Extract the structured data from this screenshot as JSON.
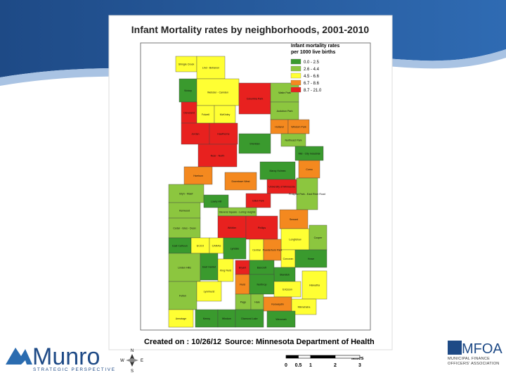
{
  "title": "Infant Mortality rates by neighborhoods, 2001-2010",
  "legend": {
    "title_lines": [
      "Infant mortality rates",
      "per 1000 live births"
    ],
    "items": [
      {
        "label": "0.0 - 2.5",
        "color": "#3a9a2e"
      },
      {
        "label": "2.6 - 4.4",
        "color": "#8cc63f"
      },
      {
        "label": "4.5 - 6.6",
        "color": "#ffff33"
      },
      {
        "label": "6.7 - 8.6",
        "color": "#f4891f"
      },
      {
        "label": "8.7 - 21.0",
        "color": "#e8211f"
      }
    ]
  },
  "neighborhoods": [
    {
      "label": "Shingle Creek",
      "category": "4.5 - 6.6"
    },
    {
      "label": "Lind - Bohanon",
      "category": "4.5 - 6.6"
    },
    {
      "label": "Victory",
      "category": "0.0 - 2.5"
    },
    {
      "label": "Webster - Camden",
      "category": "4.5 - 6.6"
    },
    {
      "label": "Cleveland",
      "category": "8.7 - 21.0"
    },
    {
      "label": "Folwell",
      "category": "4.5 - 6.6"
    },
    {
      "label": "McKinley",
      "category": "4.5 - 6.6"
    },
    {
      "label": "Columbia Park",
      "category": "8.7 - 21.0"
    },
    {
      "label": "Waite Park",
      "category": "2.6 - 4.4"
    },
    {
      "label": "Audubon Park",
      "category": "2.6 - 4.4"
    },
    {
      "label": "Holland",
      "category": "6.7 - 8.6"
    },
    {
      "label": "Windom Park",
      "category": "6.7 - 8.6"
    },
    {
      "label": "Jordan",
      "category": "8.7 - 21.0"
    },
    {
      "label": "Hawthorne",
      "category": "8.7 - 21.0"
    },
    {
      "label": "Northeast Park",
      "category": "2.6 - 4.4"
    },
    {
      "label": "Near - North",
      "category": "8.7 - 21.0"
    },
    {
      "label": "Sheridan",
      "category": "0.0 - 2.5"
    },
    {
      "label": "Mid - City Industrial",
      "category": "0.0 - 2.5"
    },
    {
      "label": "Como",
      "category": "6.7 - 8.6"
    },
    {
      "label": "Harrison",
      "category": "6.7 - 8.6"
    },
    {
      "label": "Marcy Holmes",
      "category": "0.0 - 2.5"
    },
    {
      "label": "Bryn - Mawr",
      "category": "2.6 - 4.4"
    },
    {
      "label": "Downtown West",
      "category": "6.7 - 8.6"
    },
    {
      "label": "University of Minnesota",
      "category": "8.7 - 21.0"
    },
    {
      "label": "Kenwood",
      "category": "2.6 - 4.4"
    },
    {
      "label": "Lowry Hill",
      "category": "0.0 - 2.5"
    },
    {
      "label": "Elliot Park",
      "category": "8.7 - 21.0"
    },
    {
      "label": "Prospect Park - East River Road",
      "category": "2.6 - 4.4"
    },
    {
      "label": "Stevens Square - Loring Heights",
      "category": "2.6 - 4.4"
    },
    {
      "label": "Cedar - Isles - Dean",
      "category": "2.6 - 4.4"
    },
    {
      "label": "Whittier",
      "category": "8.7 - 21.0"
    },
    {
      "label": "Phillips",
      "category": "8.7 - 21.0"
    },
    {
      "label": "Seward",
      "category": "6.7 - 8.6"
    },
    {
      "label": "Longfellow",
      "category": "4.5 - 6.6"
    },
    {
      "label": "Cooper",
      "category": "2.6 - 4.4"
    },
    {
      "label": "East Calhoun",
      "category": "0.0 - 2.5"
    },
    {
      "label": "ECCO",
      "category": "4.5 - 6.6"
    },
    {
      "label": "CARAG",
      "category": "4.5 - 6.6"
    },
    {
      "label": "Lyndale",
      "category": "0.0 - 2.5"
    },
    {
      "label": "Central",
      "category": "4.5 - 6.6"
    },
    {
      "label": "Powderhorn Park",
      "category": "6.7 - 8.6"
    },
    {
      "label": "Corcoran",
      "category": "4.5 - 6.6"
    },
    {
      "label": "Howe",
      "category": "0.0 - 2.5"
    },
    {
      "label": "Linden Hills",
      "category": "2.6 - 4.4"
    },
    {
      "label": "East Harriet",
      "category": "0.0 - 2.5"
    },
    {
      "label": "King Field",
      "category": "4.5 - 6.6"
    },
    {
      "label": "Bryant",
      "category": "8.7 - 21.0"
    },
    {
      "label": "Bancroft",
      "category": "0.0 - 2.5"
    },
    {
      "label": "Standish",
      "category": "0.0 - 2.5"
    },
    {
      "label": "Fulton",
      "category": "2.6 - 4.4"
    },
    {
      "label": "Lynnhurst",
      "category": "4.5 - 6.6"
    },
    {
      "label": "Field",
      "category": "6.7 - 8.6"
    },
    {
      "label": "Northrop",
      "category": "0.0 - 2.5"
    },
    {
      "label": "Ericsson",
      "category": "4.5 - 6.6"
    },
    {
      "label": "Hiawatha",
      "category": "4.5 - 6.6"
    },
    {
      "label": "Page",
      "category": "2.6 - 4.4"
    },
    {
      "label": "Hale",
      "category": "2.6 - 4.4"
    },
    {
      "label": "Keewaydin",
      "category": "6.7 - 8.6"
    },
    {
      "label": "Minnehaha",
      "category": "4.5 - 6.6"
    },
    {
      "label": "Armatage",
      "category": "4.5 - 6.6"
    },
    {
      "label": "Kenny",
      "category": "0.0 - 2.5"
    },
    {
      "label": "Windom",
      "category": "0.0 - 2.5"
    },
    {
      "label": "Diamond Lake",
      "category": "0.0 - 2.5"
    },
    {
      "label": "Wenonah",
      "category": "0.0 - 2.5"
    }
  ],
  "footer": {
    "created": "Created on : 10/26/12",
    "source": "Source: Minnesota Department of Health"
  },
  "scale_bar": {
    "unit": "Miles",
    "ticks": [
      0,
      0.5,
      1,
      2,
      3
    ]
  },
  "compass": {
    "north": "N",
    "south": "S",
    "east": "E",
    "west": "W"
  },
  "logos": {
    "munro": {
      "name": "Munro",
      "tagline": "STRATEGIC PERSPECTIVE"
    },
    "mfoa": {
      "name": "MFOA",
      "full_name": "MUNICIPAL FINANCE OFFICERS' ASSOCIATION"
    }
  }
}
